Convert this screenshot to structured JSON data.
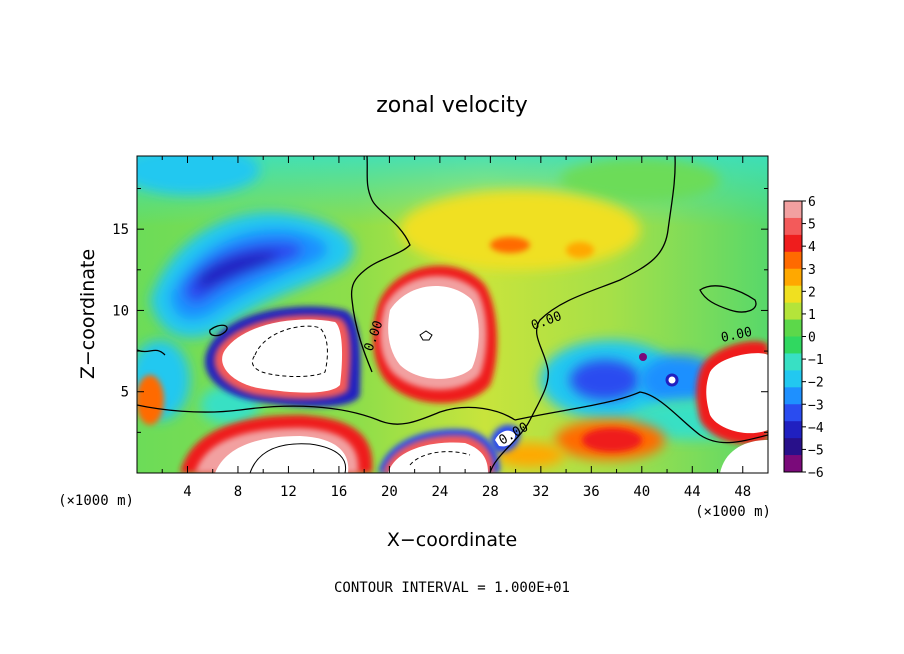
{
  "chart_data": {
    "type": "heatmap",
    "title": "zonal velocity",
    "xlabel": "X−coordinate",
    "ylabel": "Z−coordinate",
    "x_unit_left": "(×1000 m)",
    "x_unit_right": "(×1000 m)",
    "footer": "CONTOUR INTERVAL = 1.000E+01",
    "xlim": [
      0,
      50
    ],
    "ylim": [
      0,
      19.5
    ],
    "x_ticks": [
      "4",
      "8",
      "12",
      "16",
      "20",
      "24",
      "28",
      "32",
      "36",
      "40",
      "44",
      "48"
    ],
    "y_ticks": [
      "5",
      "10",
      "15"
    ],
    "contour_labels": [
      "0.00",
      "0.00",
      "0.00",
      "0.00"
    ],
    "colorbar": {
      "min": -6,
      "max": 6,
      "tick_labels": [
        "6",
        "5",
        "4",
        "3",
        "2",
        "1",
        "0",
        "−1",
        "−2",
        "−3",
        "−4",
        "−5",
        "−6"
      ],
      "colors": [
        "#f2a0a0",
        "#f35a5a",
        "#ef1d1d",
        "#ff6a00",
        "#ffa800",
        "#f0e020",
        "#b4e43a",
        "#5cd84a",
        "#30d860",
        "#38e0c4",
        "#22c8f0",
        "#1e90ff",
        "#2a4cf0",
        "#2020c0",
        "#28108a",
        "#7a0a7a"
      ]
    },
    "regions": [
      {
        "value": 6.5,
        "label": "peak-positive",
        "center": [
          13,
          7.5
        ]
      },
      {
        "value": 6.5,
        "label": "peak-positive",
        "center": [
          23,
          8.5
        ]
      },
      {
        "value": 6.5,
        "label": "peak-positive",
        "center": [
          12,
          1.5
        ]
      },
      {
        "value": 6.5,
        "label": "peak-positive",
        "center": [
          24,
          1
        ]
      },
      {
        "value": 6.5,
        "label": "peak-positive",
        "center": [
          48,
          5
        ]
      },
      {
        "value": -5,
        "label": "negative-core",
        "center": [
          10,
          14
        ]
      },
      {
        "value": -4.5,
        "label": "negative-core",
        "center": [
          38,
          6
        ]
      },
      {
        "value": 2,
        "label": "positive-band",
        "center": [
          30,
          16
        ]
      }
    ]
  }
}
